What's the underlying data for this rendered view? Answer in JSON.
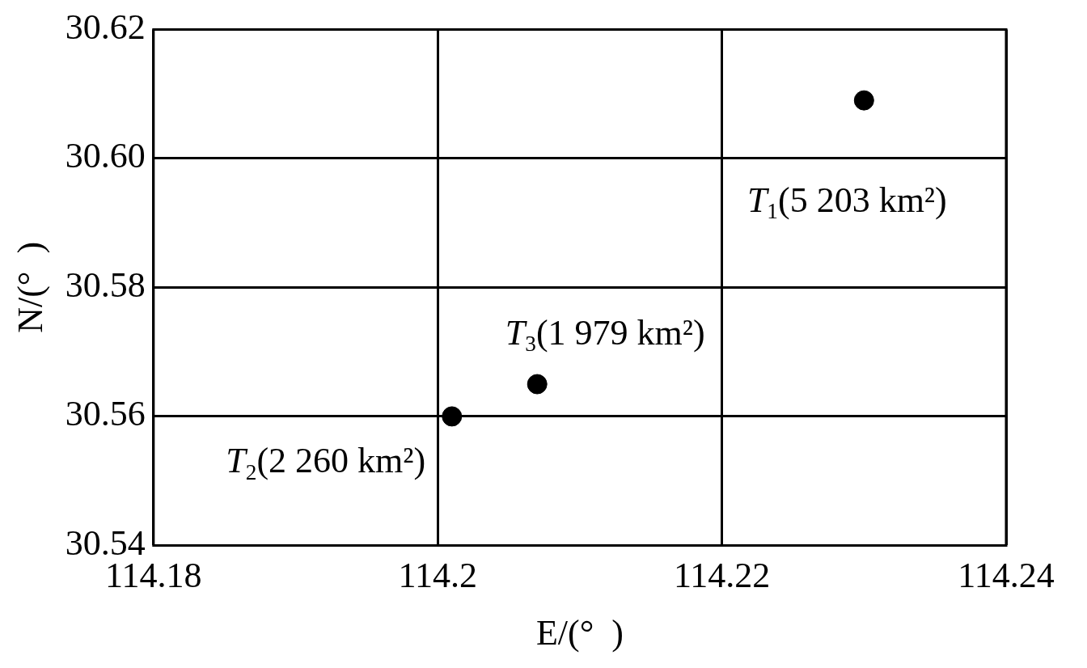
{
  "chart_data": {
    "type": "scatter",
    "xlabel": "E/(°  )",
    "ylabel": "N/(°  )",
    "x": [
      114.23,
      114.201,
      114.207
    ],
    "values": [
      30.609,
      30.56,
      30.565
    ],
    "color": "#000000",
    "marker": "circle",
    "xlim": [
      114.18,
      114.24
    ],
    "xticks": [
      114.18,
      114.2,
      114.22,
      114.24
    ],
    "ylim": [
      30.54,
      30.62
    ],
    "yticks": [
      {
        "value": 30.54,
        "label": "30.54"
      },
      {
        "value": 30.56,
        "label": "30.56"
      },
      {
        "value": 30.58,
        "label": "30.58"
      },
      {
        "value": 30.6,
        "label": "30.60"
      },
      {
        "value": 30.62,
        "label": "30.62"
      }
    ],
    "grid": true,
    "legend": false,
    "annotations": [
      {
        "text": "T$_{1}$(5 203 km²)",
        "x": 114.23,
        "y": 30.609
      },
      {
        "text": "T$_{2}$(2 260 km²)",
        "x": 114.201,
        "y": 30.56
      },
      {
        "text": "T$_{3}$(1 979 km²)",
        "x": 114.207,
        "y": 30.565
      }
    ]
  }
}
